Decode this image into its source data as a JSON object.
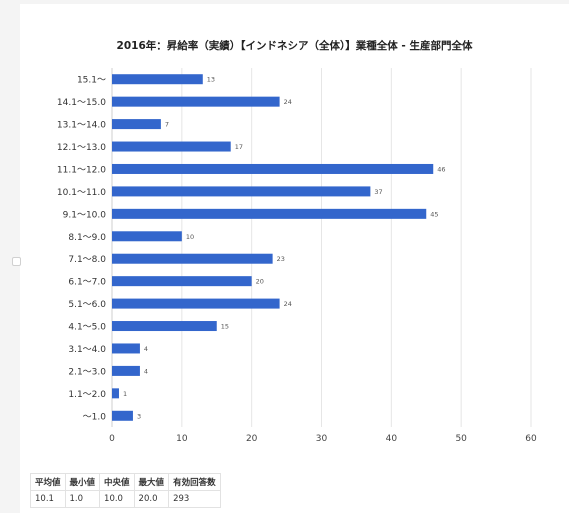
{
  "chart_data": {
    "type": "bar",
    "orientation": "horizontal",
    "title": "2016年：昇給率（実績）【インドネシア（全体）】業種全体 - 生産部門全体",
    "categories": [
      "15.1～",
      "14.1～15.0",
      "13.1～14.0",
      "12.1～13.0",
      "11.1～12.0",
      "10.1～11.0",
      "9.1～10.0",
      "8.1～9.0",
      "7.1～8.0",
      "6.1～7.0",
      "5.1～6.0",
      "4.1～5.0",
      "3.1～4.0",
      "2.1～3.0",
      "1.1～2.0",
      "～1.0"
    ],
    "values": [
      13,
      24,
      7,
      17,
      46,
      37,
      45,
      10,
      23,
      20,
      24,
      15,
      4,
      4,
      1,
      3
    ],
    "xlim": [
      0,
      60
    ],
    "xticks": [
      0,
      10,
      20,
      30,
      40,
      50,
      60
    ],
    "grid": true,
    "bar_color": "#3366cc"
  },
  "stats": {
    "headers": [
      "平均値",
      "最小値",
      "中央値",
      "最大値",
      "有効回答数"
    ],
    "values": [
      "10.1",
      "1.0",
      "10.0",
      "20.0",
      "293"
    ]
  }
}
